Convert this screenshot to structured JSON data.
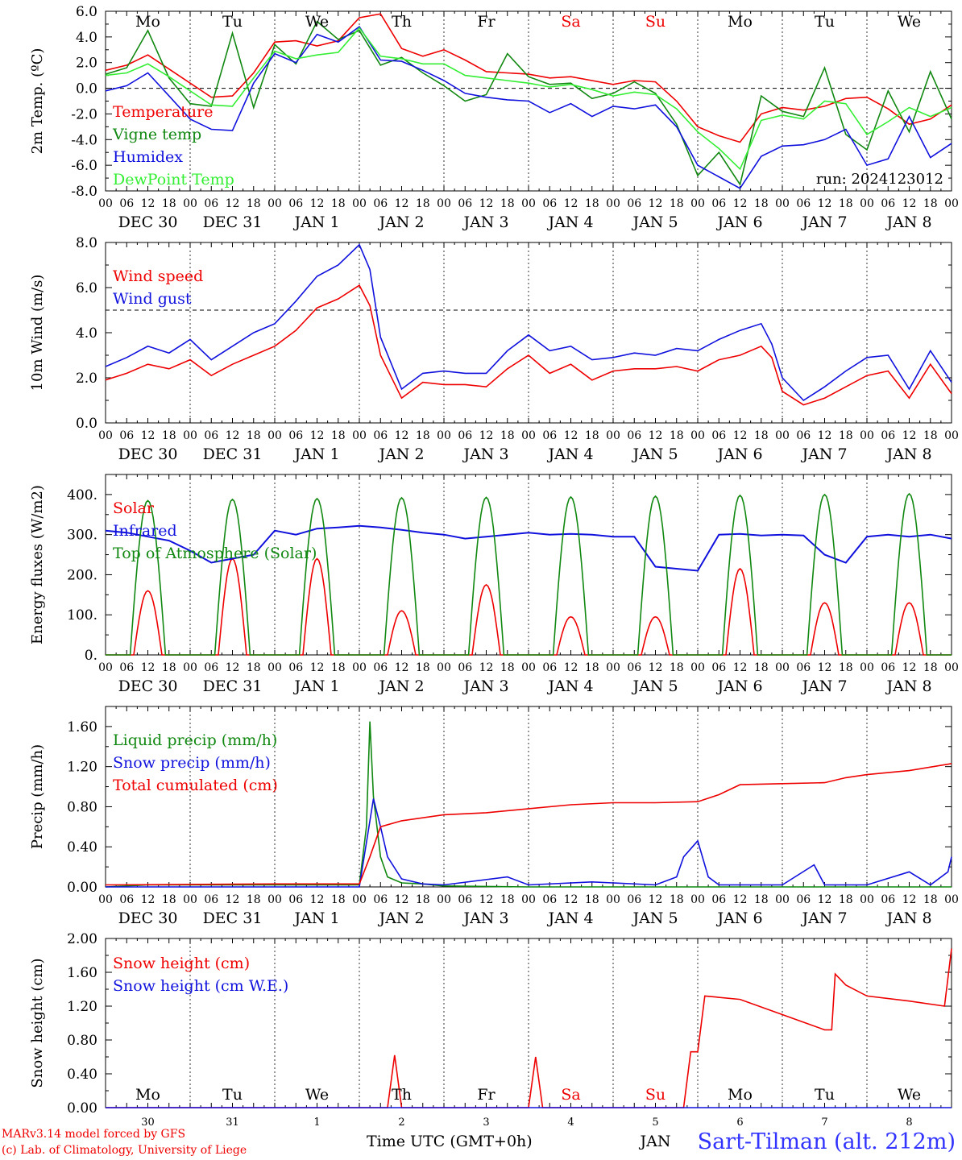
{
  "colors": {
    "red": "#ee0000",
    "darkgreen": "#118811",
    "blue": "#1111dd",
    "lightgreen": "#33ee33",
    "tempblue": "#2222cc"
  },
  "days": {
    "weekdays": [
      "Mo",
      "Tu",
      "We",
      "Th",
      "Fr",
      "Sa",
      "Su",
      "Mo",
      "Tu",
      "We"
    ],
    "weekend_indices": [
      5,
      6
    ],
    "dates": [
      "DEC 30",
      "DEC 31",
      "JAN  1",
      "JAN  2",
      "JAN  3",
      "JAN  4",
      "JAN  5",
      "JAN  6",
      "JAN  7",
      "JAN  8"
    ],
    "day_numbers": [
      "30",
      "31",
      "1",
      "2",
      "3",
      "4",
      "5",
      "6",
      "7",
      "8"
    ],
    "hour_ticks": [
      "00",
      "06",
      "12",
      "18"
    ],
    "last_tick": "00"
  },
  "footer": {
    "model": "MARv3.14 model forced by GFS",
    "lab": "(c) Lab. of Climatology, University of Liege",
    "time_axis": "Time UTC (GMT+0h)",
    "station": "Sart-Tilman (alt. 212m)",
    "partial_label": "JAN"
  },
  "chart_data": [
    {
      "type": "line",
      "ylabel": "2m Temp. (ºC)",
      "ylim": [
        -8,
        6
      ],
      "yticks": [
        -8,
        -6,
        -4,
        -2,
        0,
        2,
        4,
        6
      ],
      "ytick_labels": [
        "-8.0",
        "-6.0",
        "-4.0",
        "-2.0",
        "0.0",
        "2.0",
        "4.0",
        "6.0"
      ],
      "reference_line": 0,
      "run_label": "run: 2024123012",
      "x_unit": "hours since DEC 30 00 UTC",
      "series": [
        {
          "name": "Temperature",
          "color": "#ee0000",
          "x": [
            0,
            6,
            12,
            18,
            24,
            30,
            36,
            42,
            48,
            54,
            60,
            66,
            72,
            78,
            84,
            90,
            96,
            102,
            108,
            114,
            120,
            126,
            132,
            138,
            144,
            150,
            156,
            162,
            168,
            174,
            180,
            186,
            192,
            198,
            204,
            210,
            216,
            222,
            228,
            234,
            240
          ],
          "values": [
            1.4,
            1.8,
            2.6,
            1.5,
            0.4,
            -0.7,
            -0.6,
            1.2,
            3.6,
            3.7,
            3.3,
            3.7,
            5.5,
            5.8,
            3.1,
            2.5,
            3.0,
            2.2,
            1.3,
            1.2,
            1.1,
            0.8,
            0.9,
            0.6,
            0.3,
            0.6,
            0.5,
            -1.0,
            -3.0,
            -3.7,
            -4.2,
            -2.0,
            -1.5,
            -1.7,
            -1.4,
            -0.8,
            -0.7,
            -1.6,
            -2.8,
            -2.4,
            -1.3
          ]
        },
        {
          "name": "Vigne temp",
          "color": "#118811",
          "x": [
            0,
            6,
            12,
            18,
            24,
            30,
            36,
            42,
            48,
            54,
            60,
            66,
            72,
            78,
            84,
            90,
            96,
            102,
            108,
            114,
            120,
            126,
            132,
            138,
            144,
            150,
            156,
            162,
            168,
            174,
            180,
            186,
            192,
            198,
            204,
            210,
            216,
            222,
            228,
            234,
            240
          ],
          "values": [
            1.1,
            1.6,
            4.5,
            0.8,
            -1.2,
            -1.4,
            4.3,
            -1.5,
            3.4,
            1.9,
            5.2,
            3.8,
            4.5,
            1.8,
            2.4,
            1.2,
            0.2,
            -1.0,
            -0.5,
            2.7,
            0.9,
            0.3,
            0.4,
            -0.8,
            -0.4,
            0.5,
            -0.4,
            -2.8,
            -6.8,
            -5.0,
            -7.5,
            -0.6,
            -1.8,
            -2.2,
            1.6,
            -3.6,
            -4.8,
            -0.2,
            -3.4,
            1.3,
            -2.4
          ]
        },
        {
          "name": "Humidex",
          "color": "#1111dd",
          "x": [
            0,
            6,
            12,
            18,
            24,
            30,
            36,
            42,
            48,
            54,
            60,
            66,
            72,
            78,
            84,
            90,
            96,
            102,
            108,
            114,
            120,
            126,
            132,
            138,
            144,
            150,
            156,
            162,
            168,
            174,
            180,
            186,
            192,
            198,
            204,
            210,
            216,
            222,
            228,
            234,
            240
          ],
          "values": [
            -0.2,
            0.2,
            1.2,
            -0.6,
            -2.4,
            -3.2,
            -3.3,
            0.4,
            2.7,
            2.0,
            4.2,
            3.6,
            4.8,
            2.2,
            2.1,
            1.4,
            0.6,
            -0.4,
            -0.7,
            -0.9,
            -1.0,
            -1.9,
            -1.2,
            -2.2,
            -1.4,
            -1.6,
            -1.3,
            -3.0,
            -6.0,
            -6.9,
            -7.8,
            -5.3,
            -4.5,
            -4.4,
            -4.0,
            -3.2,
            -6.0,
            -5.5,
            -2.2,
            -5.4,
            -4.3
          ]
        },
        {
          "name": "DewPoint Temp",
          "color": "#33ee33",
          "x": [
            0,
            6,
            12,
            18,
            24,
            30,
            36,
            42,
            48,
            54,
            60,
            66,
            72,
            78,
            84,
            90,
            96,
            102,
            108,
            114,
            120,
            126,
            132,
            138,
            144,
            150,
            156,
            162,
            168,
            174,
            180,
            186,
            192,
            198,
            204,
            210,
            216,
            222,
            228,
            234,
            240
          ],
          "values": [
            1.0,
            1.2,
            1.9,
            0.9,
            -0.2,
            -1.3,
            -1.4,
            0.8,
            2.9,
            2.3,
            2.6,
            2.8,
            4.7,
            2.5,
            2.3,
            1.9,
            1.9,
            1.0,
            0.8,
            0.6,
            0.4,
            0.1,
            0.3,
            -0.1,
            -0.6,
            -0.3,
            -0.5,
            -1.6,
            -3.4,
            -4.7,
            -6.3,
            -2.5,
            -2.1,
            -2.4,
            -1.0,
            -1.2,
            -3.6,
            -2.6,
            -1.5,
            -2.2,
            -1.5
          ]
        }
      ]
    },
    {
      "type": "line",
      "ylabel": "10m Wind (m/s)",
      "ylim": [
        0,
        8
      ],
      "yticks": [
        0,
        2,
        4,
        6,
        8
      ],
      "ytick_labels": [
        "0.0",
        "2.0",
        "4.0",
        "6.0",
        "8.0"
      ],
      "reference_line": 5,
      "x_unit": "hours since DEC 30 00 UTC",
      "series": [
        {
          "name": "Wind speed",
          "color": "#ee0000",
          "x": [
            0,
            6,
            12,
            18,
            24,
            30,
            36,
            42,
            48,
            54,
            60,
            66,
            72,
            75,
            78,
            84,
            90,
            96,
            102,
            108,
            114,
            120,
            126,
            132,
            138,
            144,
            150,
            156,
            162,
            168,
            174,
            180,
            186,
            189,
            192,
            198,
            204,
            210,
            216,
            222,
            228,
            234,
            240
          ],
          "values": [
            1.9,
            2.2,
            2.6,
            2.4,
            2.8,
            2.1,
            2.6,
            3.0,
            3.4,
            4.1,
            5.1,
            5.5,
            6.1,
            5.2,
            3.0,
            1.1,
            1.8,
            1.7,
            1.7,
            1.6,
            2.4,
            3.0,
            2.2,
            2.6,
            1.9,
            2.3,
            2.4,
            2.4,
            2.5,
            2.3,
            2.8,
            3.0,
            3.4,
            2.9,
            1.4,
            0.8,
            1.1,
            1.6,
            2.1,
            2.3,
            1.1,
            2.6,
            1.3
          ]
        },
        {
          "name": "Wind gust",
          "color": "#1111dd",
          "x": [
            0,
            6,
            12,
            18,
            24,
            30,
            36,
            42,
            48,
            54,
            60,
            66,
            72,
            75,
            78,
            84,
            90,
            96,
            102,
            108,
            114,
            120,
            126,
            132,
            138,
            144,
            150,
            156,
            162,
            168,
            174,
            180,
            186,
            189,
            192,
            198,
            204,
            210,
            216,
            222,
            228,
            234,
            240
          ],
          "values": [
            2.5,
            2.9,
            3.4,
            3.1,
            3.7,
            2.8,
            3.4,
            4.0,
            4.4,
            5.4,
            6.5,
            7.0,
            7.9,
            6.8,
            3.8,
            1.5,
            2.2,
            2.3,
            2.2,
            2.2,
            3.2,
            3.9,
            3.2,
            3.4,
            2.8,
            2.9,
            3.1,
            3.0,
            3.3,
            3.2,
            3.7,
            4.1,
            4.4,
            3.5,
            2.0,
            1.0,
            1.6,
            2.3,
            2.9,
            3.0,
            1.5,
            3.2,
            1.8
          ]
        }
      ]
    },
    {
      "type": "line",
      "ylabel": "Energy fluxes (W/m2)",
      "ylim": [
        0,
        450
      ],
      "yticks": [
        0,
        100,
        200,
        300,
        400
      ],
      "ytick_labels": [
        "0.",
        "100.",
        "200.",
        "300.",
        "400."
      ],
      "x_unit": "hours since DEC 30 00 UTC",
      "series": [
        {
          "name": "Solar",
          "color": "#ee0000",
          "daily_peak": [
            160,
            240,
            240,
            110,
            175,
            95,
            95,
            215,
            130,
            130
          ]
        },
        {
          "name": "Infrared",
          "color": "#1111dd",
          "x": [
            0,
            6,
            12,
            18,
            24,
            30,
            36,
            42,
            48,
            54,
            60,
            66,
            72,
            78,
            84,
            90,
            96,
            102,
            108,
            114,
            120,
            126,
            132,
            138,
            144,
            150,
            156,
            162,
            168,
            174,
            180,
            186,
            192,
            198,
            204,
            210,
            216,
            222,
            228,
            234,
            240
          ],
          "values": [
            310,
            305,
            295,
            285,
            260,
            230,
            240,
            250,
            310,
            300,
            315,
            318,
            322,
            318,
            312,
            305,
            300,
            290,
            295,
            300,
            305,
            300,
            302,
            300,
            295,
            295,
            220,
            215,
            210,
            300,
            302,
            298,
            300,
            298,
            250,
            230,
            295,
            300,
            295,
            300,
            290
          ]
        },
        {
          "name": "Top of Atmosphere (Solar)",
          "color": "#118811",
          "daily_peak": [
            385,
            388,
            390,
            392,
            393,
            394,
            396,
            398,
            400,
            402
          ]
        }
      ]
    },
    {
      "type": "line",
      "ylabel": "Precip (mm/h)",
      "ylim": [
        0,
        1.8
      ],
      "yticks": [
        0,
        0.4,
        0.8,
        1.2,
        1.6
      ],
      "ytick_labels": [
        "0.00",
        "0.40",
        "0.80",
        "1.20",
        "1.60"
      ],
      "x_unit": "hours since DEC 30 00 UTC",
      "series": [
        {
          "name": "Liquid precip (mm/h)",
          "color": "#118811",
          "x": [
            0,
            12,
            24,
            48,
            72,
            74,
            75,
            76,
            78,
            80,
            84,
            90,
            96,
            120,
            144,
            168,
            192,
            216,
            240
          ],
          "values": [
            0,
            0.02,
            0.02,
            0.02,
            0.02,
            0.6,
            1.65,
            0.9,
            0.3,
            0.1,
            0.04,
            0.03,
            0.01,
            0,
            0,
            0,
            0,
            0,
            0
          ]
        },
        {
          "name": "Snow precip (mm/h)",
          "color": "#1111dd",
          "x": [
            0,
            72,
            76,
            78,
            80,
            84,
            90,
            96,
            114,
            120,
            138,
            156,
            162,
            164,
            168,
            171,
            174,
            192,
            201,
            204,
            216,
            228,
            234,
            239,
            240
          ],
          "values": [
            0,
            0,
            0.88,
            0.6,
            0.3,
            0.08,
            0.03,
            0.02,
            0.1,
            0.02,
            0.05,
            0.02,
            0.1,
            0.3,
            0.46,
            0.1,
            0.02,
            0.02,
            0.22,
            0.02,
            0.02,
            0.15,
            0.02,
            0.15,
            0.3
          ]
        },
        {
          "name": "Total cumulated (cm)",
          "color": "#ee0000",
          "x": [
            0,
            48,
            72,
            75,
            78,
            84,
            96,
            108,
            120,
            132,
            144,
            156,
            168,
            174,
            180,
            192,
            204,
            210,
            216,
            228,
            240
          ],
          "values": [
            0.02,
            0.03,
            0.03,
            0.3,
            0.6,
            0.66,
            0.72,
            0.74,
            0.78,
            0.82,
            0.84,
            0.84,
            0.85,
            0.92,
            1.02,
            1.03,
            1.04,
            1.09,
            1.12,
            1.16,
            1.23
          ]
        }
      ]
    },
    {
      "type": "line",
      "ylabel": "Snow height (cm)",
      "ylim": [
        0,
        2
      ],
      "yticks": [
        0,
        0.4,
        0.8,
        1.2,
        1.6,
        2.0
      ],
      "ytick_labels": [
        "0.00",
        "0.40",
        "0.80",
        "1.20",
        "1.60",
        "2.00"
      ],
      "x_unit": "hours since DEC 30 00 UTC",
      "series": [
        {
          "name": "Snow height (cm)",
          "color": "#ee0000",
          "x": [
            0,
            80,
            82,
            84,
            120,
            122,
            124,
            164,
            166,
            168,
            170,
            180,
            192,
            204,
            206,
            207,
            210,
            216,
            228,
            238,
            240
          ],
          "values": [
            0,
            0,
            0.62,
            0,
            0,
            0.6,
            0,
            0,
            0.66,
            0.66,
            1.32,
            1.28,
            1.1,
            0.92,
            0.92,
            1.58,
            1.45,
            1.32,
            1.26,
            1.2,
            1.88
          ]
        },
        {
          "name": "Snow height (cm W.E.)",
          "color": "#1111dd",
          "x": [
            0,
            240
          ],
          "values": [
            0,
            0
          ]
        }
      ]
    }
  ]
}
